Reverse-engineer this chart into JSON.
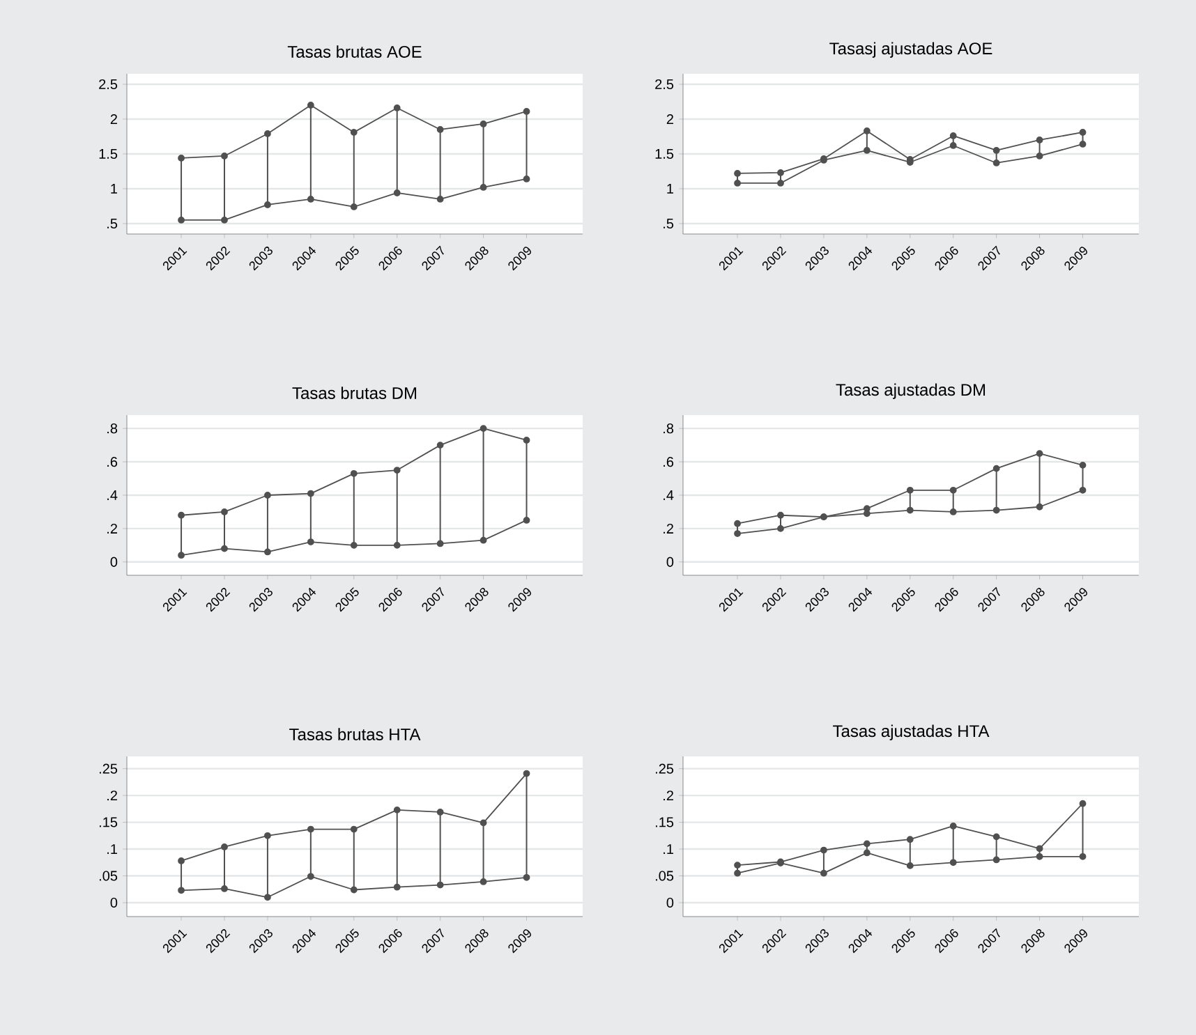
{
  "chart_data": [
    {
      "type": "line",
      "title": "Tasas brutas AOE",
      "categories": [
        "2001",
        "2002",
        "2003",
        "2004",
        "2005",
        "2006",
        "2007",
        "2008",
        "2009"
      ],
      "series": [
        {
          "color": "#505050",
          "values": [
            1.44,
            1.47,
            1.79,
            2.2,
            1.81,
            2.16,
            1.85,
            1.93,
            2.11
          ],
          "errors": [
            [
              0.55,
              1.44
            ],
            [
              0.55,
              1.47
            ],
            [
              0.77,
              1.79
            ],
            [
              0.85,
              2.2
            ],
            [
              0.74,
              1.81
            ],
            [
              0.94,
              2.16
            ],
            [
              0.85,
              1.85
            ],
            [
              1.02,
              1.93
            ],
            [
              1.14,
              2.11
            ]
          ]
        },
        {
          "color": "#505050",
          "values": [
            0.55,
            0.55,
            0.77,
            0.85,
            0.74,
            0.94,
            0.85,
            1.02,
            1.14
          ]
        }
      ],
      "ylim": [
        0.35,
        2.65
      ],
      "yticks": [
        {
          "value": 0.5,
          "label": ".5"
        },
        1,
        1.5,
        2,
        2.5
      ],
      "grid": "y",
      "marker": "circle",
      "line_style": "solid"
    },
    {
      "type": "line",
      "title": "Tasasj ajustadas AOE",
      "categories": [
        "2001",
        "2002",
        "2003",
        "2004",
        "2005",
        "2006",
        "2007",
        "2008",
        "2009"
      ],
      "series": [
        {
          "color": "#505050",
          "values": [
            1.22,
            1.23,
            1.43,
            1.83,
            1.42,
            1.76,
            1.55,
            1.7,
            1.81
          ],
          "errors": [
            [
              1.08,
              1.22
            ],
            [
              1.08,
              1.23
            ],
            [
              1.41,
              1.43
            ],
            [
              1.55,
              1.83
            ],
            [
              1.38,
              1.42
            ],
            [
              1.62,
              1.76
            ],
            [
              1.37,
              1.55
            ],
            [
              1.47,
              1.7
            ],
            [
              1.64,
              1.81
            ]
          ]
        },
        {
          "color": "#505050",
          "values": [
            1.08,
            1.08,
            1.41,
            1.55,
            1.38,
            1.62,
            1.37,
            1.47,
            1.64
          ]
        }
      ],
      "ylim": [
        0.35,
        2.65
      ],
      "yticks": [
        {
          "value": 0.5,
          "label": ".5"
        },
        1,
        1.5,
        2,
        2.5
      ],
      "grid": "y",
      "marker": "circle",
      "line_style": "solid"
    },
    {
      "type": "line",
      "title": "Tasas brutas DM",
      "categories": [
        "2001",
        "2002",
        "2003",
        "2004",
        "2005",
        "2006",
        "2007",
        "2008",
        "2009"
      ],
      "series": [
        {
          "color": "#505050",
          "values": [
            0.28,
            0.3,
            0.4,
            0.41,
            0.53,
            0.55,
            0.7,
            0.8,
            0.73
          ],
          "errors": [
            [
              0.04,
              0.28
            ],
            [
              0.08,
              0.3
            ],
            [
              0.06,
              0.4
            ],
            [
              0.12,
              0.41
            ],
            [
              0.1,
              0.53
            ],
            [
              0.1,
              0.55
            ],
            [
              0.11,
              0.7
            ],
            [
              0.13,
              0.8
            ],
            [
              0.25,
              0.73
            ]
          ]
        },
        {
          "color": "#505050",
          "values": [
            0.04,
            0.08,
            0.06,
            0.12,
            0.1,
            0.1,
            0.11,
            0.13,
            0.25
          ]
        }
      ],
      "ylim": [
        -0.08,
        0.88
      ],
      "yticks": [
        0,
        {
          "value": 0.2,
          "label": ".2"
        },
        {
          "value": 0.4,
          "label": ".4"
        },
        {
          "value": 0.6,
          "label": ".6"
        },
        {
          "value": 0.8,
          "label": ".8"
        }
      ],
      "grid": "y",
      "marker": "circle",
      "line_style": "solid"
    },
    {
      "type": "line",
      "title": "Tasas ajustadas DM",
      "categories": [
        "2001",
        "2002",
        "2003",
        "2004",
        "2005",
        "2006",
        "2007",
        "2008",
        "2009"
      ],
      "series": [
        {
          "color": "#505050",
          "values": [
            0.23,
            0.28,
            0.27,
            0.32,
            0.43,
            0.43,
            0.56,
            0.65,
            0.58
          ],
          "errors": [
            [
              0.17,
              0.23
            ],
            [
              0.2,
              0.28
            ],
            null,
            [
              0.29,
              0.32
            ],
            [
              0.31,
              0.43
            ],
            [
              0.3,
              0.43
            ],
            [
              0.31,
              0.56
            ],
            [
              0.33,
              0.65
            ],
            [
              0.43,
              0.58
            ]
          ]
        },
        {
          "color": "#505050",
          "values": [
            0.17,
            0.2,
            0.27,
            0.29,
            0.31,
            0.3,
            0.31,
            0.33,
            0.43
          ]
        }
      ],
      "ylim": [
        -0.08,
        0.88
      ],
      "yticks": [
        0,
        {
          "value": 0.2,
          "label": ".2"
        },
        {
          "value": 0.4,
          "label": ".4"
        },
        {
          "value": 0.6,
          "label": ".6"
        },
        {
          "value": 0.8,
          "label": ".8"
        }
      ],
      "grid": "y",
      "marker": "circle",
      "line_style": "solid"
    },
    {
      "type": "line",
      "title": "Tasas brutas HTA",
      "categories": [
        "2001",
        "2002",
        "2003",
        "2004",
        "2005",
        "2006",
        "2007",
        "2008",
        "2009"
      ],
      "series": [
        {
          "color": "#505050",
          "values": [
            0.078,
            0.104,
            0.125,
            0.137,
            0.137,
            0.173,
            0.169,
            0.149,
            0.241
          ],
          "errors": [
            [
              0.023,
              0.078
            ],
            [
              0.026,
              0.104
            ],
            [
              0.01,
              0.125
            ],
            [
              0.049,
              0.137
            ],
            [
              0.024,
              0.137
            ],
            [
              0.029,
              0.173
            ],
            [
              0.033,
              0.169
            ],
            [
              0.039,
              0.149
            ],
            [
              0.047,
              0.241
            ]
          ]
        },
        {
          "color": "#505050",
          "values": [
            0.023,
            0.026,
            0.01,
            0.049,
            0.024,
            0.029,
            0.033,
            0.039,
            0.047
          ]
        }
      ],
      "ylim": [
        -0.026,
        0.273
      ],
      "yticks": [
        0,
        {
          "value": 0.05,
          "label": ".05"
        },
        {
          "value": 0.1,
          "label": ".1"
        },
        {
          "value": 0.15,
          "label": ".15"
        },
        {
          "value": 0.2,
          "label": ".2"
        },
        {
          "value": 0.25,
          "label": ".25"
        }
      ],
      "grid": "y",
      "marker": "circle",
      "line_style": "solid"
    },
    {
      "type": "line",
      "title": "Tasas ajustadas HTA",
      "categories": [
        "2001",
        "2002",
        "2003",
        "2004",
        "2005",
        "2006",
        "2007",
        "2008",
        "2009"
      ],
      "series": [
        {
          "color": "#505050",
          "values": [
            0.07,
            0.076,
            0.098,
            0.11,
            0.118,
            0.143,
            0.123,
            0.101,
            0.185
          ],
          "errors": [
            [
              0.055,
              0.07
            ],
            null,
            [
              0.055,
              0.098
            ],
            [
              0.093,
              0.11
            ],
            [
              0.069,
              0.118
            ],
            [
              0.075,
              0.143
            ],
            [
              0.08,
              0.123
            ],
            [
              0.086,
              0.101
            ],
            [
              0.086,
              0.185
            ]
          ]
        },
        {
          "color": "#505050",
          "values": [
            0.055,
            0.074,
            0.055,
            0.093,
            0.069,
            0.075,
            0.08,
            0.086,
            0.086
          ]
        }
      ],
      "ylim": [
        -0.026,
        0.273
      ],
      "yticks": [
        0,
        {
          "value": 0.05,
          "label": ".05"
        },
        {
          "value": 0.1,
          "label": ".1"
        },
        {
          "value": 0.15,
          "label": ".15"
        },
        {
          "value": 0.2,
          "label": ".2"
        },
        {
          "value": 0.25,
          "label": ".25"
        }
      ],
      "grid": "y",
      "marker": "circle",
      "line_style": "solid"
    }
  ]
}
